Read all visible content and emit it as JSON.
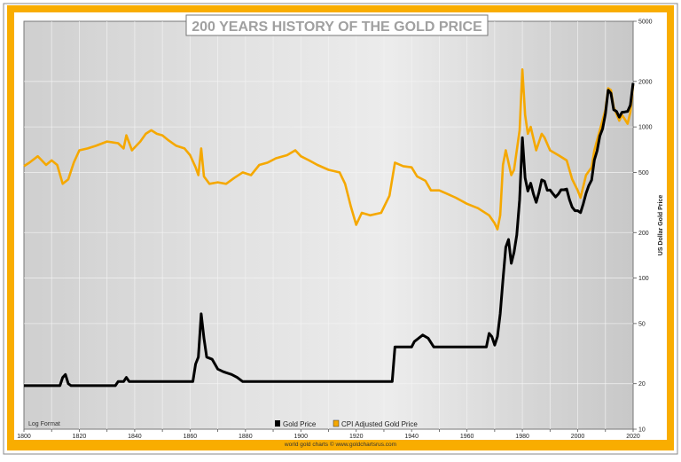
{
  "chart_data": {
    "type": "line",
    "title": "200 YEARS HISTORY OF THE GOLD PRICE",
    "ylabel": "US Dollar Gold Price",
    "xlabel": "",
    "yscale": "log",
    "xlim": [
      1800,
      2020
    ],
    "ylim": [
      10,
      5000
    ],
    "x_ticks": [
      1800,
      1820,
      1840,
      1860,
      1880,
      1900,
      1920,
      1940,
      1960,
      1980,
      2000,
      2020
    ],
    "y_ticks": [
      10,
      20,
      50,
      100,
      200,
      500,
      1000,
      2000,
      5000
    ],
    "grid": true,
    "scale_note": "Log Format",
    "legend_position": "bottom-center",
    "footer": "world gold charts © www.goldchartsrus.com",
    "colors": {
      "frame": "#f9ad00",
      "gold": "#000000",
      "cpi": "#f5a800",
      "title": "#a0a0a0"
    },
    "series": [
      {
        "name": "Gold Price",
        "color": "#000000",
        "points": [
          [
            1800,
            19.4
          ],
          [
            1813,
            19.4
          ],
          [
            1814,
            22
          ],
          [
            1815,
            23
          ],
          [
            1816,
            20
          ],
          [
            1817,
            19.4
          ],
          [
            1833,
            19.4
          ],
          [
            1834,
            20.67
          ],
          [
            1836,
            20.67
          ],
          [
            1837,
            22
          ],
          [
            1838,
            20.67
          ],
          [
            1861,
            20.67
          ],
          [
            1862,
            27
          ],
          [
            1863,
            30
          ],
          [
            1864,
            58
          ],
          [
            1865,
            40
          ],
          [
            1866,
            30
          ],
          [
            1868,
            29
          ],
          [
            1870,
            25
          ],
          [
            1872,
            24
          ],
          [
            1875,
            23
          ],
          [
            1877,
            22
          ],
          [
            1879,
            20.67
          ],
          [
            1933,
            20.67
          ],
          [
            1934,
            35
          ],
          [
            1940,
            35
          ],
          [
            1941,
            38
          ],
          [
            1944,
            42
          ],
          [
            1946,
            40
          ],
          [
            1948,
            35
          ],
          [
            1967,
            35
          ],
          [
            1968,
            43
          ],
          [
            1969,
            41
          ],
          [
            1970,
            36
          ],
          [
            1971,
            41
          ],
          [
            1972,
            58
          ],
          [
            1973,
            97
          ],
          [
            1974,
            160
          ],
          [
            1975,
            180
          ],
          [
            1976,
            125
          ],
          [
            1977,
            148
          ],
          [
            1978,
            193
          ],
          [
            1979,
            330
          ],
          [
            1980,
            850
          ],
          [
            1981,
            460
          ],
          [
            1982,
            376
          ],
          [
            1983,
            424
          ],
          [
            1984,
            360
          ],
          [
            1985,
            317
          ],
          [
            1986,
            368
          ],
          [
            1987,
            446
          ],
          [
            1988,
            437
          ],
          [
            1989,
            381
          ],
          [
            1990,
            383
          ],
          [
            1991,
            362
          ],
          [
            1992,
            344
          ],
          [
            1993,
            360
          ],
          [
            1994,
            384
          ],
          [
            1995,
            384
          ],
          [
            1996,
            388
          ],
          [
            1997,
            331
          ],
          [
            1998,
            294
          ],
          [
            1999,
            279
          ],
          [
            2000,
            279
          ],
          [
            2001,
            271
          ],
          [
            2002,
            310
          ],
          [
            2003,
            363
          ],
          [
            2004,
            409
          ],
          [
            2005,
            445
          ],
          [
            2006,
            604
          ],
          [
            2007,
            696
          ],
          [
            2008,
            872
          ],
          [
            2009,
            972
          ],
          [
            2010,
            1225
          ],
          [
            2011,
            1750
          ],
          [
            2012,
            1669
          ],
          [
            2013,
            1300
          ],
          [
            2014,
            1266
          ],
          [
            2015,
            1160
          ],
          [
            2016,
            1251
          ],
          [
            2017,
            1257
          ],
          [
            2018,
            1268
          ],
          [
            2019,
            1393
          ],
          [
            2020,
            1950
          ]
        ]
      },
      {
        "name": "CPI Adjusted Gold Price",
        "color": "#f5a800",
        "points": [
          [
            1800,
            550
          ],
          [
            1802,
            580
          ],
          [
            1805,
            640
          ],
          [
            1808,
            560
          ],
          [
            1810,
            600
          ],
          [
            1812,
            560
          ],
          [
            1814,
            420
          ],
          [
            1816,
            450
          ],
          [
            1818,
            580
          ],
          [
            1820,
            700
          ],
          [
            1823,
            720
          ],
          [
            1826,
            750
          ],
          [
            1830,
            800
          ],
          [
            1834,
            780
          ],
          [
            1836,
            720
          ],
          [
            1837,
            880
          ],
          [
            1839,
            700
          ],
          [
            1842,
            800
          ],
          [
            1844,
            900
          ],
          [
            1846,
            950
          ],
          [
            1848,
            900
          ],
          [
            1850,
            880
          ],
          [
            1852,
            820
          ],
          [
            1855,
            750
          ],
          [
            1858,
            720
          ],
          [
            1860,
            650
          ],
          [
            1862,
            540
          ],
          [
            1863,
            480
          ],
          [
            1864,
            720
          ],
          [
            1865,
            470
          ],
          [
            1867,
            420
          ],
          [
            1870,
            430
          ],
          [
            1873,
            420
          ],
          [
            1876,
            460
          ],
          [
            1879,
            500
          ],
          [
            1882,
            480
          ],
          [
            1885,
            560
          ],
          [
            1888,
            580
          ],
          [
            1891,
            620
          ],
          [
            1895,
            650
          ],
          [
            1898,
            700
          ],
          [
            1900,
            640
          ],
          [
            1903,
            600
          ],
          [
            1906,
            560
          ],
          [
            1910,
            520
          ],
          [
            1914,
            500
          ],
          [
            1916,
            420
          ],
          [
            1918,
            300
          ],
          [
            1920,
            225
          ],
          [
            1922,
            270
          ],
          [
            1925,
            260
          ],
          [
            1929,
            270
          ],
          [
            1932,
            350
          ],
          [
            1934,
            580
          ],
          [
            1937,
            550
          ],
          [
            1940,
            540
          ],
          [
            1942,
            470
          ],
          [
            1945,
            440
          ],
          [
            1947,
            380
          ],
          [
            1950,
            380
          ],
          [
            1953,
            360
          ],
          [
            1956,
            340
          ],
          [
            1960,
            310
          ],
          [
            1964,
            290
          ],
          [
            1968,
            260
          ],
          [
            1970,
            230
          ],
          [
            1971,
            210
          ],
          [
            1972,
            260
          ],
          [
            1973,
            560
          ],
          [
            1974,
            700
          ],
          [
            1976,
            480
          ],
          [
            1977,
            520
          ],
          [
            1978,
            700
          ],
          [
            1979,
            950
          ],
          [
            1980,
            2400
          ],
          [
            1981,
            1200
          ],
          [
            1982,
            900
          ],
          [
            1983,
            1000
          ],
          [
            1985,
            700
          ],
          [
            1987,
            900
          ],
          [
            1988,
            850
          ],
          [
            1990,
            700
          ],
          [
            1993,
            650
          ],
          [
            1996,
            600
          ],
          [
            1998,
            450
          ],
          [
            2000,
            380
          ],
          [
            2001,
            340
          ],
          [
            2003,
            480
          ],
          [
            2005,
            540
          ],
          [
            2006,
            700
          ],
          [
            2008,
            950
          ],
          [
            2010,
            1300
          ],
          [
            2011,
            1800
          ],
          [
            2012,
            1750
          ],
          [
            2013,
            1350
          ],
          [
            2015,
            1100
          ],
          [
            2016,
            1200
          ],
          [
            2018,
            1050
          ],
          [
            2019,
            1250
          ],
          [
            2020,
            1900
          ]
        ]
      }
    ]
  }
}
